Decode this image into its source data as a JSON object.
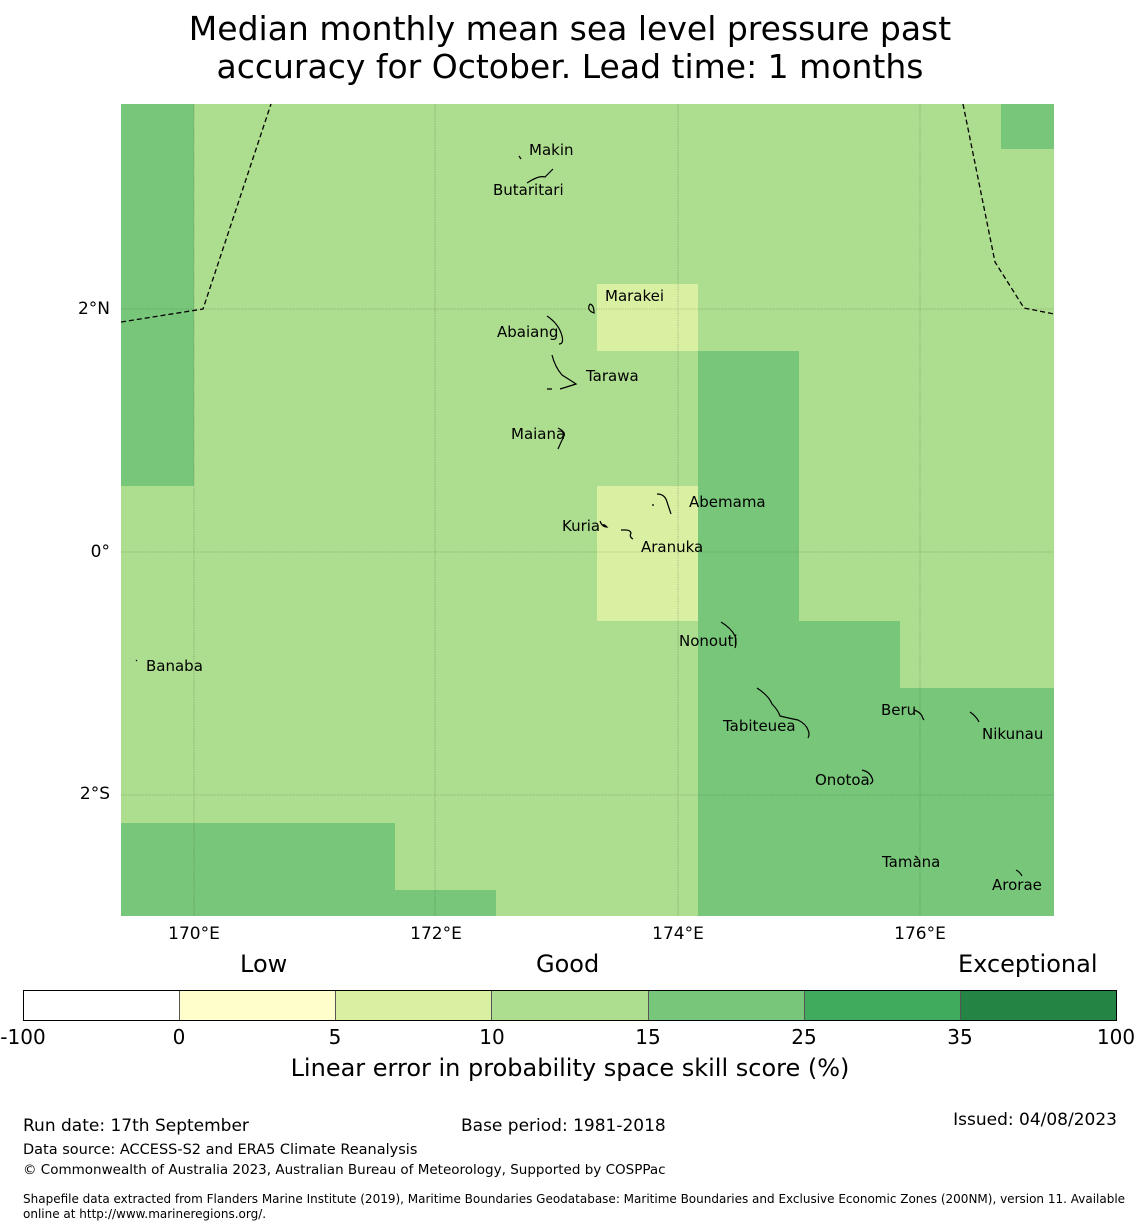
{
  "title_line1": "Median monthly mean sea level pressure past",
  "title_line2": "accuracy for October. Lead time: 1 months",
  "axes": {
    "lat_labels": [
      "2°N",
      "0°",
      "2°S"
    ],
    "lon_labels": [
      "170°E",
      "172°E",
      "174°E",
      "176°E"
    ]
  },
  "places": [
    "Makin",
    "Butaritari",
    "Marakei",
    "Abaiang",
    "Tarawa",
    "Maiana",
    "Abemama",
    "Kuria",
    "Aranuka",
    "Nonouti",
    "Banaba",
    "Tabiteuea",
    "Beru",
    "Nikunau",
    "Onotoa",
    "Tamana",
    "Arorae"
  ],
  "colorbar": {
    "categories": [
      "Low",
      "Good",
      "Exceptional"
    ],
    "ticks": [
      "-100",
      "0",
      "5",
      "10",
      "15",
      "25",
      "35",
      "100"
    ],
    "colors": [
      "#ffffff",
      "#ffffcc",
      "#d9f0a3",
      "#addd8e",
      "#78c679",
      "#41ab5d",
      "#238443"
    ],
    "label": "Linear error in probability space skill score (%)"
  },
  "footer": {
    "run_date": "Run date: 17th September",
    "base_period": "Base period: 1981-2018",
    "issued": "Issued: 04/08/2023",
    "data_source": "Data source: ACCESS-S2 and ERA5 Climate Reanalysis",
    "copyright": "© Commonwealth of Australia 2023, Australian Bureau of Meteorology, Supported by COSPPac",
    "shapefile_line1": "Shapefile data extracted from Flanders Marine Institute (2019), Maritime Boundaries Geodatabase: Maritime Boundaries and Exclusive Economic Zones (200NM), version 11. Available",
    "shapefile_line2": "online at http://www.marineregions.org/."
  }
}
